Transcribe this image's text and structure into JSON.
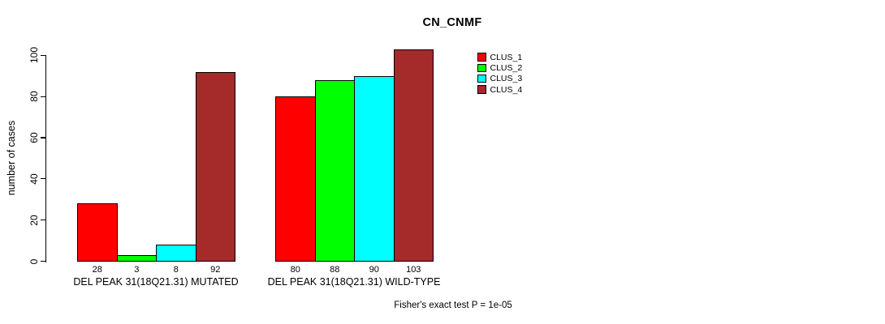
{
  "chart_data": {
    "type": "bar",
    "title": "CN_CNMF",
    "ylabel": "number of cases",
    "xlabel": "",
    "yticks": [
      0,
      20,
      40,
      60,
      80,
      100
    ],
    "ylim": [
      0,
      107
    ],
    "grid": false,
    "legend_position": "top-right",
    "series": [
      {
        "name": "CLUS_1",
        "color": "#ff0000"
      },
      {
        "name": "CLUS_2",
        "color": "#00ff00"
      },
      {
        "name": "CLUS_3",
        "color": "#00ffff"
      },
      {
        "name": "CLUS_4",
        "color": "#a52a2a"
      }
    ],
    "groups": [
      {
        "label": "DEL PEAK 31(18Q21.31) MUTATED",
        "values": [
          28,
          3,
          8,
          92
        ]
      },
      {
        "label": "DEL PEAK 31(18Q21.31) WILD-TYPE",
        "values": [
          80,
          88,
          90,
          103
        ]
      }
    ],
    "footnote": "Fisher's exact test P = 1e-05"
  }
}
